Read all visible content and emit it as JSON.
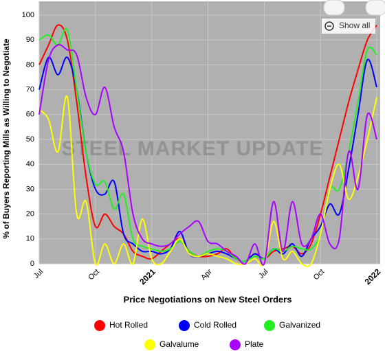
{
  "chart_data": {
    "type": "line",
    "x_label": "Price Negotiations on New Steel Orders",
    "y_label": "% of Buyers Reporting Mills as Willing to Negotiate",
    "watermark": "STEEL MARKET UPDATE",
    "button": "Show all",
    "x": [
      0,
      0.5,
      1,
      1.5,
      2,
      2.5,
      3,
      3.5,
      4,
      4.5,
      5,
      5.5,
      6,
      6.5,
      7,
      7.5,
      8,
      8.5,
      9,
      9.5,
      10,
      10.5,
      11,
      11.5,
      12,
      12.5,
      13,
      13.5,
      14,
      14.5,
      15,
      15.5,
      16,
      16.5,
      17,
      17.5,
      18
    ],
    "xlim": [
      0,
      18
    ],
    "xticks": [
      {
        "value": 0,
        "label": "Jul"
      },
      {
        "value": 3,
        "label": "Oct"
      },
      {
        "value": 6,
        "label": "2021"
      },
      {
        "value": 9,
        "label": "Apr"
      },
      {
        "value": 12,
        "label": "Jul"
      },
      {
        "value": 15,
        "label": "Oct"
      },
      {
        "value": 18,
        "label": "2022"
      }
    ],
    "ylim": [
      0,
      100
    ],
    "yticks": [
      0,
      10,
      20,
      30,
      40,
      50,
      60,
      70,
      80,
      90,
      100
    ],
    "grid": true,
    "series": [
      {
        "name": "Hot Rolled",
        "color": "#ff0000",
        "values": [
          80,
          88,
          96,
          90,
          65,
          35,
          15,
          20,
          15,
          12,
          5,
          3,
          2,
          5,
          8,
          10,
          5,
          3,
          3,
          4,
          6,
          2,
          1,
          4,
          2,
          5,
          6,
          7,
          4,
          8,
          20,
          35,
          50,
          65,
          78,
          90,
          96
        ]
      },
      {
        "name": "Cold Rolled",
        "color": "#0000ff",
        "values": [
          70,
          83,
          76,
          83,
          70,
          45,
          30,
          28,
          33,
          12,
          8,
          5,
          5,
          4,
          6,
          13,
          4,
          3,
          4,
          5,
          4,
          2,
          1,
          4,
          2,
          6,
          4,
          8,
          3,
          10,
          15,
          24,
          20,
          38,
          60,
          82,
          71
        ]
      },
      {
        "name": "Galvanized",
        "color": "#22ee22",
        "values": [
          90,
          92,
          88,
          94,
          70,
          45,
          32,
          33,
          22,
          28,
          10,
          7,
          6,
          5,
          6,
          9,
          5,
          3,
          5,
          6,
          5,
          2,
          1,
          3,
          2,
          6,
          5,
          7,
          6,
          6,
          12,
          30,
          30,
          45,
          65,
          86,
          84
        ]
      },
      {
        "name": "Galvalume",
        "color": "#ffff00",
        "values": [
          62,
          58,
          45,
          67,
          20,
          25,
          0,
          8,
          0,
          8,
          0,
          18,
          2,
          0,
          5,
          10,
          4,
          3,
          4,
          3,
          2,
          0,
          0,
          2,
          0,
          17,
          2,
          5,
          0,
          0,
          12,
          30,
          40,
          26,
          35,
          50,
          67
        ]
      },
      {
        "name": "Plate",
        "color": "#aa00ff",
        "values": [
          60,
          82,
          88,
          86,
          84,
          67,
          60,
          71,
          55,
          45,
          20,
          10,
          8,
          7,
          8,
          12,
          15,
          17,
          9,
          8,
          5,
          3,
          0,
          8,
          0,
          25,
          5,
          25,
          8,
          10,
          20,
          8,
          10,
          45,
          30,
          60,
          50
        ]
      }
    ]
  }
}
